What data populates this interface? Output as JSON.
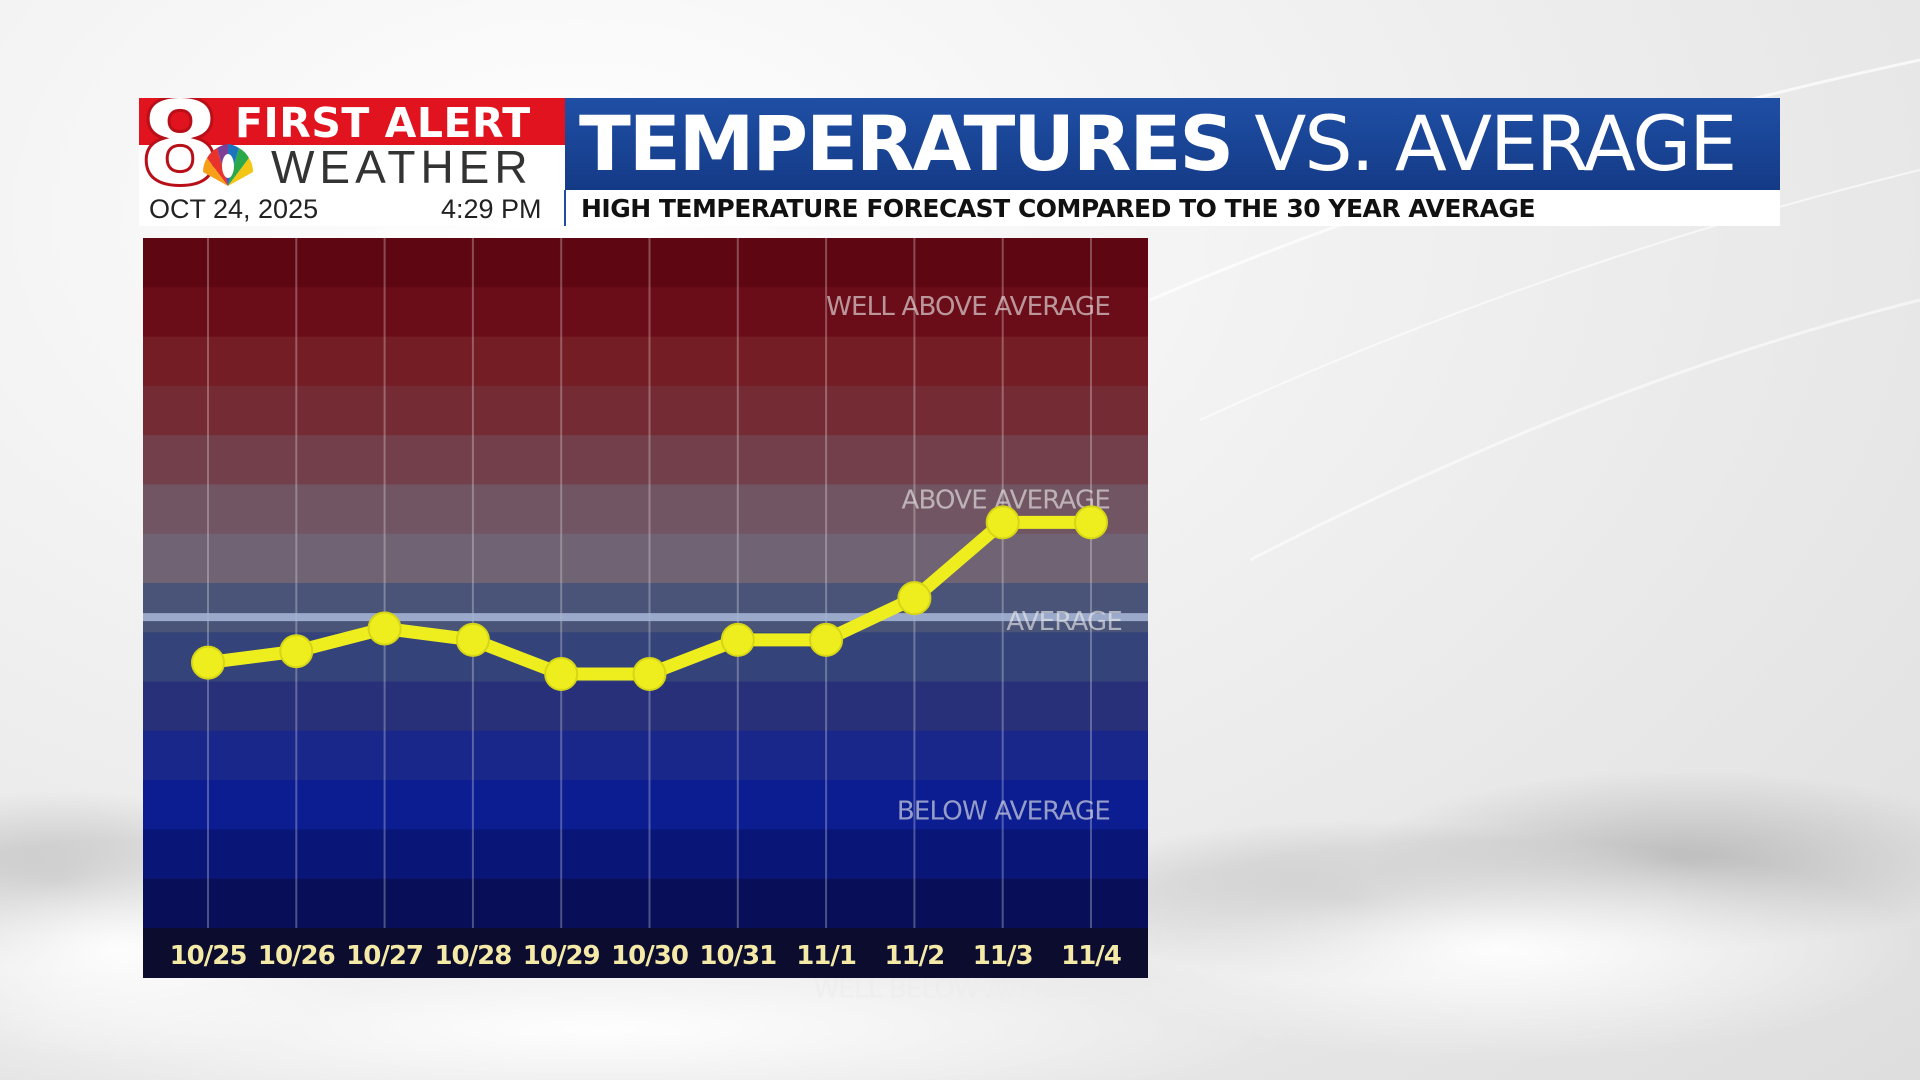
{
  "header": {
    "logo_number": "8",
    "logo_line1": "FIRST ALERT",
    "logo_line2": "WEATHER",
    "date": "OCT 24, 2025",
    "time": "4:29 PM",
    "title_bold": "TEMPERATURES",
    "title_rest": "VS. AVERAGE",
    "subtitle": "HIGH TEMPERATURE FORECAST COMPARED TO THE 30 YEAR AVERAGE"
  },
  "colors": {
    "title_bar": "#1f4fa5",
    "logo_red": "#e0131f",
    "line": "#eeee1e",
    "average_line": "#a9b8d8"
  },
  "chart_data": {
    "type": "line",
    "title": "TEMPERATURES VS. AVERAGE",
    "subtitle": "HIGH TEMPERATURE FORECAST COMPARED TO THE 30 YEAR AVERAGE",
    "categories": [
      "10/25",
      "10/26",
      "10/27",
      "10/28",
      "10/29",
      "10/30",
      "10/31",
      "11/1",
      "11/2",
      "11/3",
      "11/4"
    ],
    "series": [
      {
        "values": [
          -0.6,
          -0.45,
          -0.15,
          -0.3,
          -0.75,
          -0.75,
          -0.3,
          -0.3,
          0.25,
          1.25,
          1.25
        ]
      }
    ],
    "value_scale": "relative to average; 1 unit = one shaded band",
    "ylim": [
      -4.1,
      5.0
    ],
    "band_labels": [
      {
        "text": "WELL ABOVE AVERAGE",
        "level": 4.1
      },
      {
        "text": "ABOVE AVERAGE",
        "level": 1.55
      },
      {
        "text": "AVERAGE",
        "level": -0.05
      },
      {
        "text": "BELOW AVERAGE",
        "level": -2.55
      },
      {
        "text": "WELL BELOW AVERAGE",
        "level": -4.9
      }
    ],
    "band_colors": [
      "#5e0713",
      "#6b0d19",
      "#741d25",
      "#752b34",
      "#733f4a",
      "#725562",
      "#6f6374",
      "#4a5478",
      "#34437a",
      "#28307a",
      "#1a278a",
      "#0b1d90",
      "#091678",
      "#080e58"
    ],
    "grid": true
  }
}
